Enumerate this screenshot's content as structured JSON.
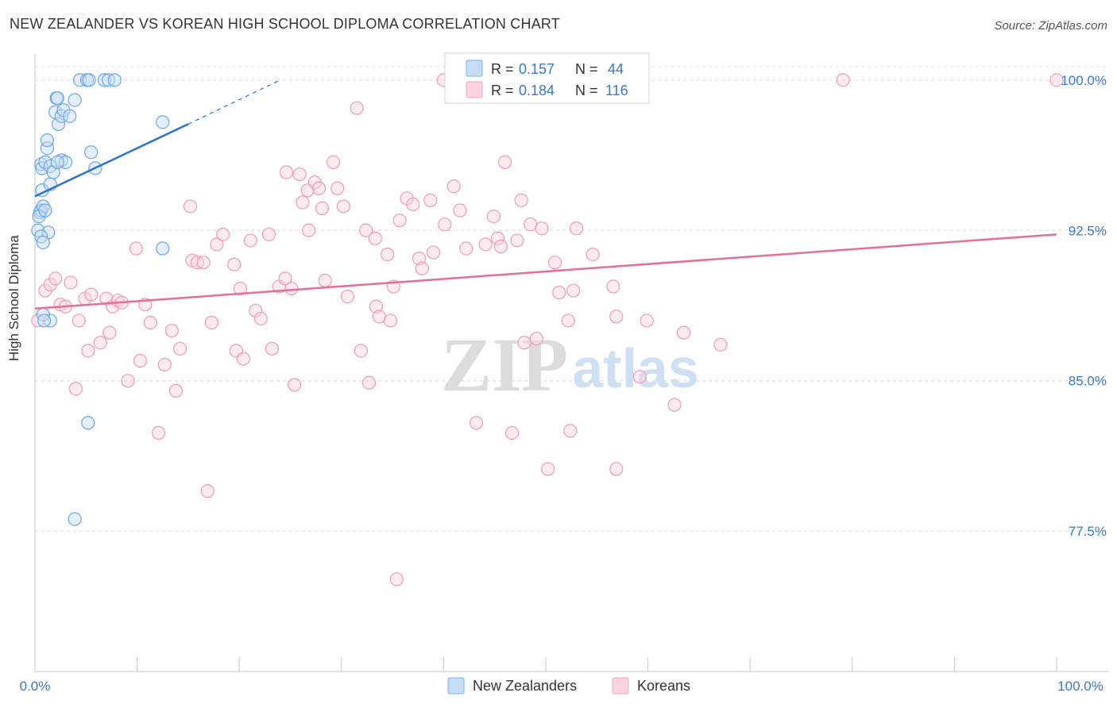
{
  "header": {
    "title": "NEW ZEALANDER VS KOREAN HIGH SCHOOL DIPLOMA CORRELATION CHART",
    "source": "Source: ZipAtlas.com"
  },
  "watermark": {
    "part1": "ZIP",
    "part2": "atlas"
  },
  "legend_top": [
    {
      "r_label": "R =",
      "r_value": "0.157",
      "n_label": "N =",
      "n_value": "44",
      "color": "#7ab3ea"
    },
    {
      "r_label": "R =",
      "r_value": "0.184",
      "n_label": "N =",
      "n_value": "116",
      "color": "#f2a7c0"
    }
  ],
  "legend_bottom": [
    {
      "label": "New Zealanders",
      "color": "#7ab3ea"
    },
    {
      "label": "Koreans",
      "color": "#f2a7c0"
    }
  ],
  "colors": {
    "blue_line": "#2a72d0",
    "pink_line": "#e66d9a",
    "blue_text": "#3a78c9",
    "grid": "#d8d8d8"
  },
  "chart_data": {
    "type": "scatter",
    "title": "NEW ZEALANDER VS KOREAN HIGH SCHOOL DIPLOMA CORRELATION CHART",
    "xlabel": "",
    "ylabel": "High School Diploma",
    "x_ticks": [
      "0.0%",
      "100.0%"
    ],
    "y_ticks": [
      "100.0%",
      "92.5%",
      "85.0%",
      "77.5%"
    ],
    "y_tick_values": [
      100.0,
      92.5,
      85.0,
      77.5
    ],
    "xlim": [
      0,
      100
    ],
    "ylim": [
      70.5,
      101.3
    ],
    "grid": true,
    "series": [
      {
        "name": "New Zealanders",
        "r": 0.157,
        "n": 44,
        "trend": {
          "x1": 0.0,
          "y1": 94.2,
          "x2": 15.0,
          "y2": 97.8,
          "dash_to_x": 24.0,
          "dash_to_y": 100.0
        },
        "points": [
          [
            0.3,
            92.5
          ],
          [
            0.5,
            93.4
          ],
          [
            0.6,
            95.8
          ],
          [
            0.7,
            95.6
          ],
          [
            0.6,
            93.5
          ],
          [
            0.7,
            94.5
          ],
          [
            0.8,
            93.7
          ],
          [
            1.0,
            95.9
          ],
          [
            1.2,
            96.6
          ],
          [
            1.2,
            97.0
          ],
          [
            1.3,
            92.4
          ],
          [
            1.5,
            95.7
          ],
          [
            1.5,
            94.8
          ],
          [
            1.8,
            95.4
          ],
          [
            2.0,
            98.4
          ],
          [
            2.1,
            99.1
          ],
          [
            2.2,
            99.1
          ],
          [
            2.3,
            97.8
          ],
          [
            2.6,
            96.0
          ],
          [
            2.6,
            98.2
          ],
          [
            2.8,
            98.5
          ],
          [
            3.0,
            95.9
          ],
          [
            3.4,
            98.2
          ],
          [
            3.9,
            99.0
          ],
          [
            4.4,
            100.0
          ],
          [
            5.1,
            100.0
          ],
          [
            5.3,
            100.0
          ],
          [
            6.8,
            100.0
          ],
          [
            7.2,
            100.0
          ],
          [
            7.8,
            100.0
          ],
          [
            5.5,
            96.4
          ],
          [
            5.9,
            95.6
          ],
          [
            12.5,
            97.9
          ],
          [
            12.5,
            91.6
          ],
          [
            0.6,
            92.2
          ],
          [
            0.8,
            91.9
          ],
          [
            1.5,
            88.0
          ],
          [
            0.8,
            88.3
          ],
          [
            0.9,
            88.0
          ],
          [
            5.2,
            82.9
          ],
          [
            3.9,
            78.1
          ],
          [
            0.4,
            93.2
          ],
          [
            1.0,
            93.5
          ],
          [
            2.2,
            95.9
          ]
        ]
      },
      {
        "name": "Koreans",
        "r": 0.184,
        "n": 116,
        "trend": {
          "x1": 0.0,
          "y1": 88.6,
          "x2": 100.0,
          "y2": 92.3
        },
        "points": [
          [
            0.3,
            88.0
          ],
          [
            1.0,
            89.5
          ],
          [
            1.5,
            89.8
          ],
          [
            2.0,
            90.1
          ],
          [
            2.5,
            88.8
          ],
          [
            3.0,
            88.7
          ],
          [
            3.5,
            89.9
          ],
          [
            4.0,
            84.6
          ],
          [
            4.3,
            88.0
          ],
          [
            4.9,
            89.1
          ],
          [
            5.2,
            86.5
          ],
          [
            5.5,
            89.3
          ],
          [
            6.4,
            86.9
          ],
          [
            7.0,
            89.1
          ],
          [
            7.3,
            87.4
          ],
          [
            7.6,
            88.7
          ],
          [
            8.1,
            89.0
          ],
          [
            8.5,
            88.9
          ],
          [
            9.1,
            85.0
          ],
          [
            9.9,
            91.6
          ],
          [
            10.3,
            86.0
          ],
          [
            10.8,
            88.8
          ],
          [
            11.3,
            87.9
          ],
          [
            12.1,
            82.4
          ],
          [
            12.7,
            85.8
          ],
          [
            13.4,
            87.5
          ],
          [
            13.8,
            84.5
          ],
          [
            14.2,
            86.6
          ],
          [
            15.2,
            93.7
          ],
          [
            15.4,
            91.0
          ],
          [
            15.9,
            90.9
          ],
          [
            16.5,
            90.9
          ],
          [
            16.9,
            79.5
          ],
          [
            17.3,
            87.9
          ],
          [
            17.8,
            91.8
          ],
          [
            18.4,
            92.3
          ],
          [
            19.5,
            90.8
          ],
          [
            19.7,
            86.5
          ],
          [
            20.1,
            89.6
          ],
          [
            20.4,
            86.1
          ],
          [
            21.1,
            92.0
          ],
          [
            21.6,
            88.5
          ],
          [
            22.1,
            88.1
          ],
          [
            22.9,
            92.3
          ],
          [
            23.2,
            86.6
          ],
          [
            23.9,
            89.7
          ],
          [
            24.5,
            90.1
          ],
          [
            24.6,
            95.4
          ],
          [
            25.1,
            89.6
          ],
          [
            25.4,
            84.8
          ],
          [
            25.9,
            95.3
          ],
          [
            26.2,
            93.9
          ],
          [
            26.7,
            94.5
          ],
          [
            26.8,
            92.5
          ],
          [
            27.4,
            94.9
          ],
          [
            27.8,
            94.6
          ],
          [
            28.1,
            93.6
          ],
          [
            28.4,
            90.0
          ],
          [
            29.6,
            94.6
          ],
          [
            29.2,
            95.9
          ],
          [
            30.2,
            93.7
          ],
          [
            30.6,
            89.2
          ],
          [
            31.5,
            98.6
          ],
          [
            31.9,
            86.5
          ],
          [
            32.4,
            92.5
          ],
          [
            32.7,
            84.9
          ],
          [
            33.3,
            92.1
          ],
          [
            33.4,
            88.7
          ],
          [
            33.7,
            88.2
          ],
          [
            34.5,
            91.3
          ],
          [
            34.8,
            88.0
          ],
          [
            35.1,
            89.7
          ],
          [
            35.4,
            75.1
          ],
          [
            35.7,
            93.0
          ],
          [
            36.4,
            94.1
          ],
          [
            37.0,
            93.8
          ],
          [
            37.6,
            91.1
          ],
          [
            37.9,
            90.6
          ],
          [
            38.7,
            94.0
          ],
          [
            39.0,
            91.4
          ],
          [
            40.1,
            92.8
          ],
          [
            41.0,
            94.7
          ],
          [
            41.6,
            93.5
          ],
          [
            42.2,
            91.6
          ],
          [
            43.2,
            82.9
          ],
          [
            44.1,
            91.8
          ],
          [
            44.9,
            93.2
          ],
          [
            45.3,
            92.1
          ],
          [
            45.6,
            91.7
          ],
          [
            46.0,
            95.9
          ],
          [
            46.7,
            82.4
          ],
          [
            47.2,
            92.0
          ],
          [
            47.6,
            94.0
          ],
          [
            47.9,
            86.9
          ],
          [
            48.5,
            92.8
          ],
          [
            49.1,
            87.1
          ],
          [
            49.6,
            92.6
          ],
          [
            50.2,
            80.6
          ],
          [
            50.9,
            90.9
          ],
          [
            51.3,
            89.4
          ],
          [
            52.2,
            88.0
          ],
          [
            52.4,
            82.5
          ],
          [
            52.7,
            89.5
          ],
          [
            53.0,
            92.6
          ],
          [
            54.6,
            91.3
          ],
          [
            56.6,
            89.7
          ],
          [
            56.9,
            88.2
          ],
          [
            56.9,
            80.6
          ],
          [
            59.2,
            85.2
          ],
          [
            59.9,
            88.0
          ],
          [
            62.6,
            83.8
          ],
          [
            63.5,
            87.4
          ],
          [
            67.1,
            86.8
          ],
          [
            79.1,
            100.0
          ],
          [
            100.0,
            100.0
          ],
          [
            40.0,
            100.0
          ]
        ]
      }
    ]
  }
}
